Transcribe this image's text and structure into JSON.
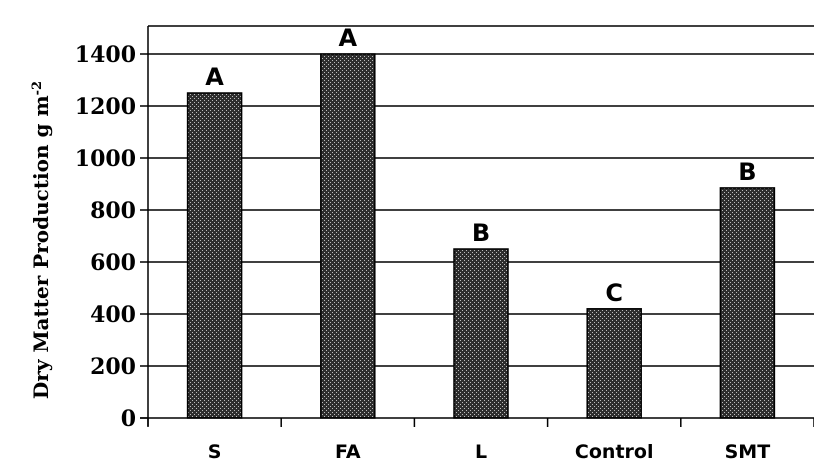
{
  "chart_data": {
    "type": "bar",
    "categories": [
      "S",
      "FA",
      "L",
      "Control",
      "SMT"
    ],
    "values": [
      1250,
      1400,
      650,
      420,
      885
    ],
    "bar_labels": [
      "A",
      "A",
      "B",
      "C",
      "B"
    ],
    "title": "",
    "xlabel": "",
    "ylabel": "Dry Matter Production g m",
    "ylabel_superscript": "-2",
    "ylim": [
      0,
      1400
    ],
    "yticks": [
      0,
      200,
      400,
      600,
      800,
      1000,
      1200,
      1400
    ],
    "grid": "horizontal",
    "bar_color": "#3a3a3a",
    "bar_pattern": "dotted-dark"
  }
}
